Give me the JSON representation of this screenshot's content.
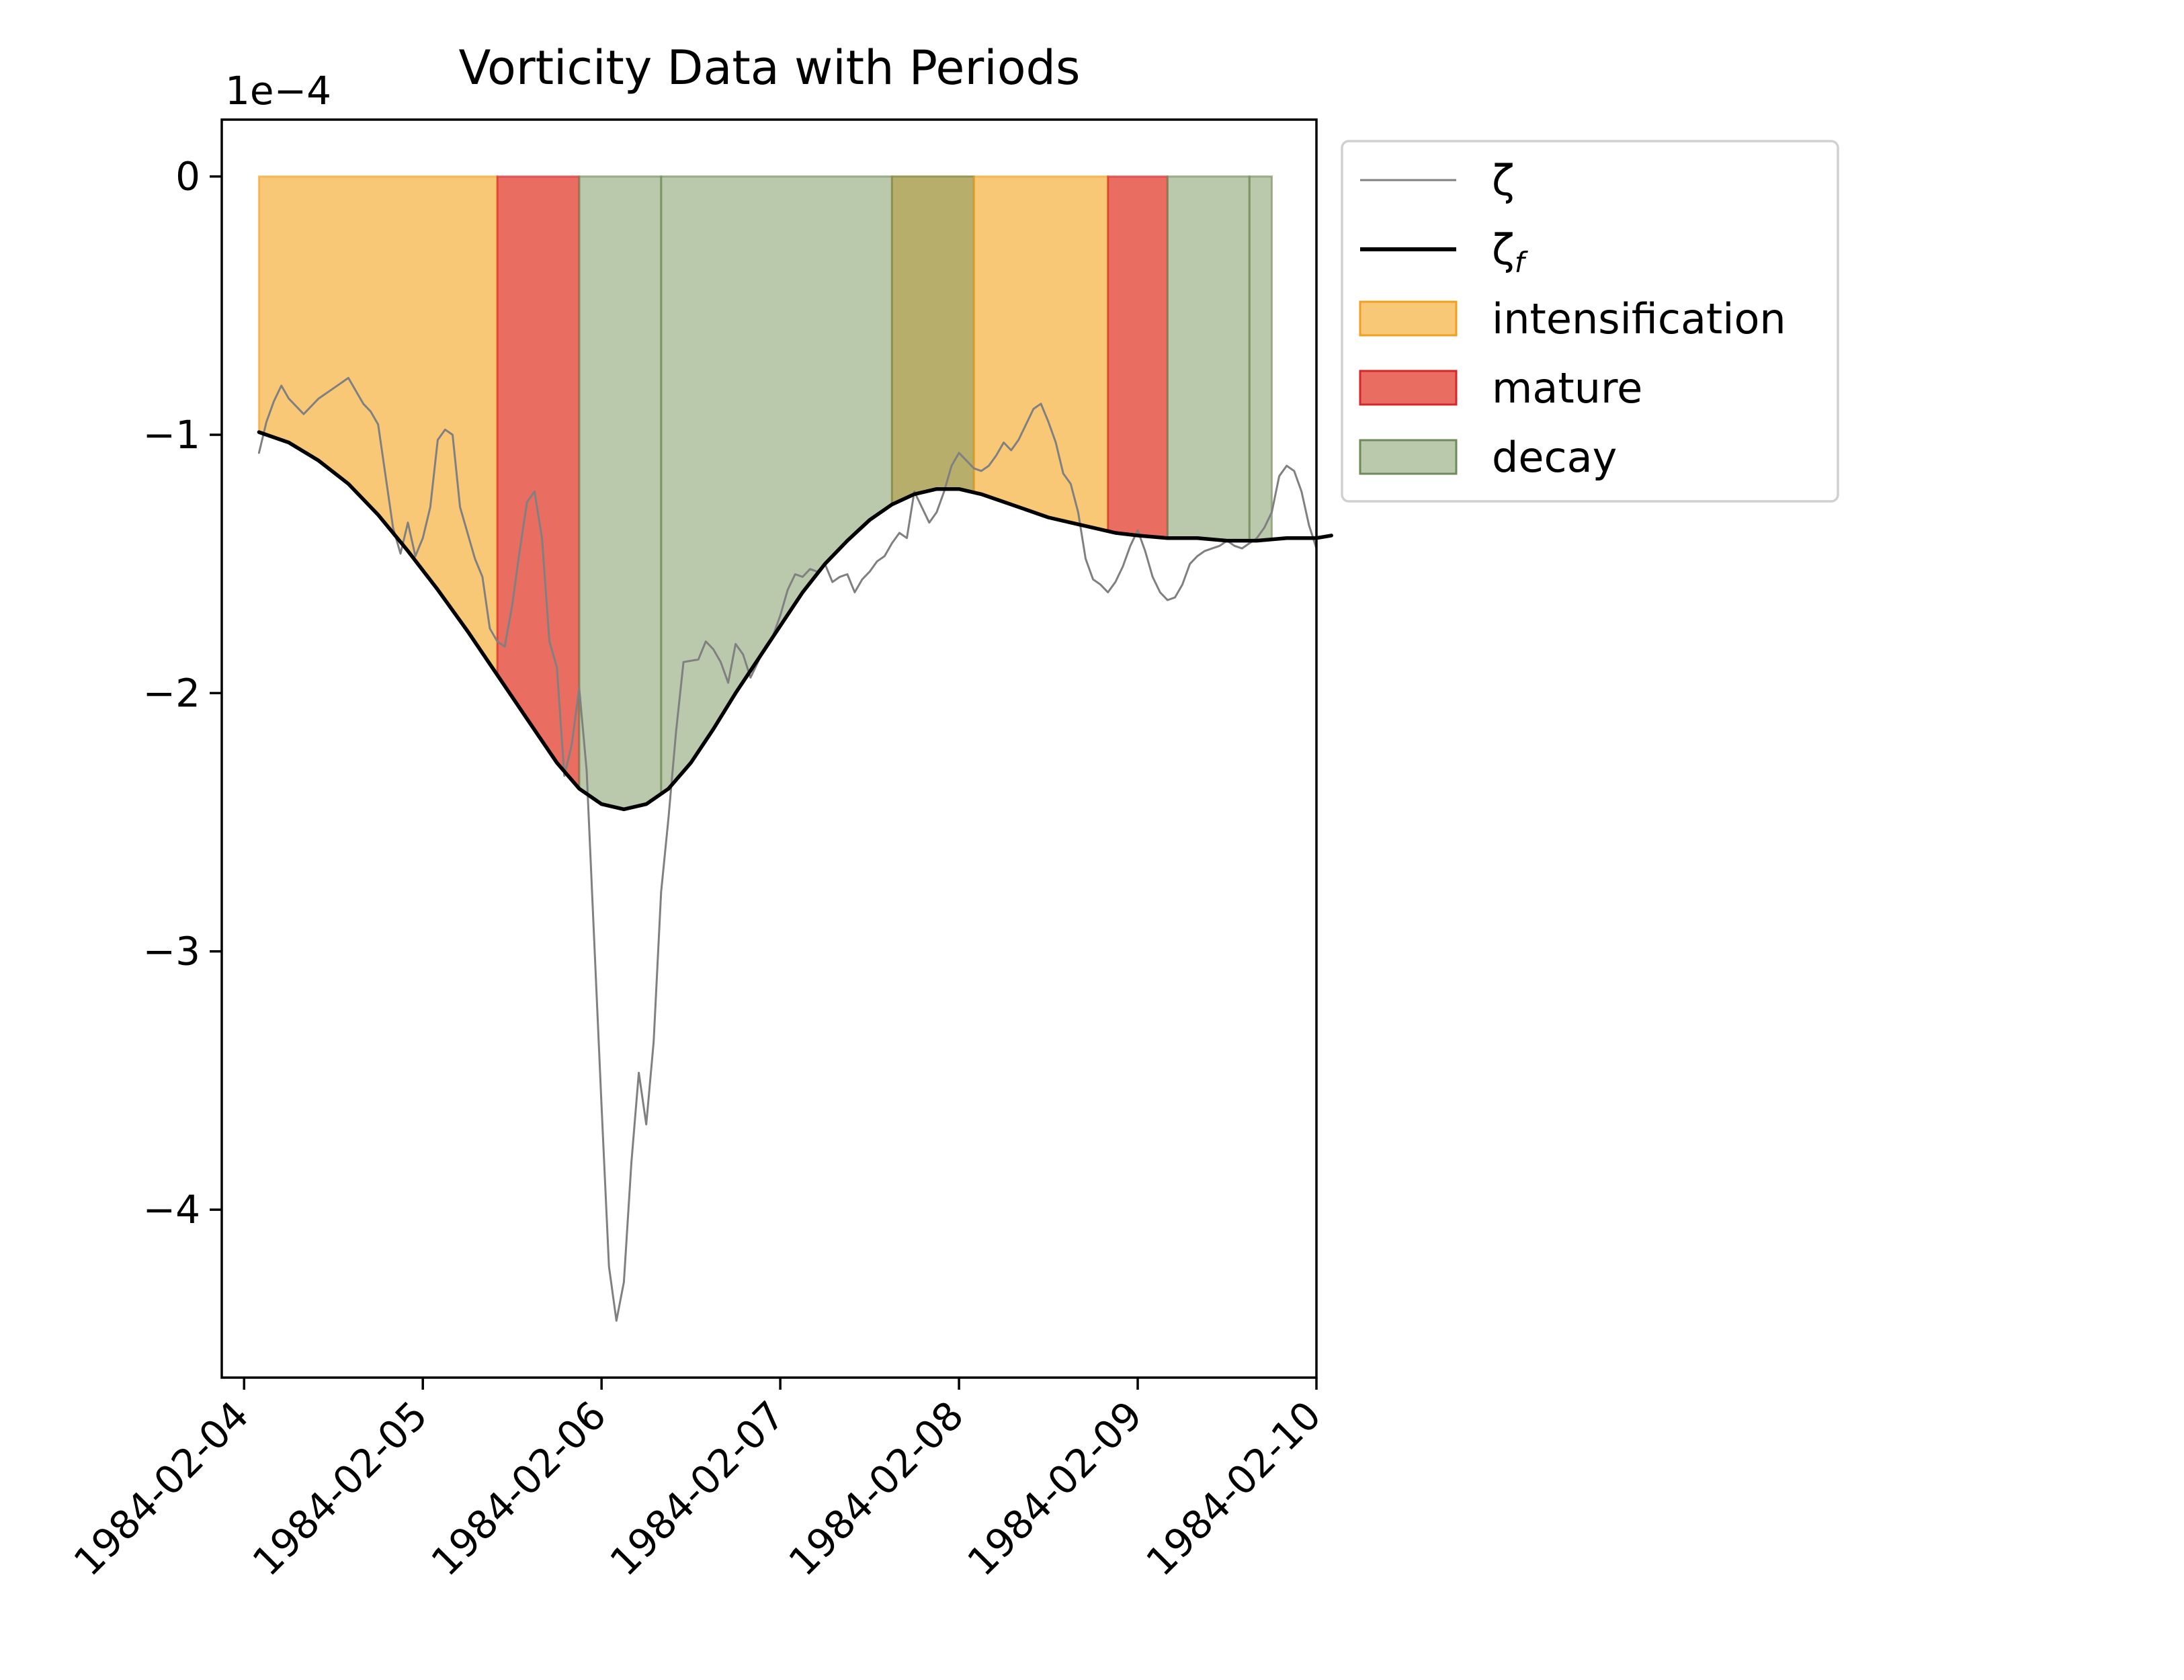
{
  "chart_data": {
    "type": "line",
    "title": "Vorticity Data with Periods",
    "offset_label": "1e−4",
    "xlabel": "",
    "ylabel": "",
    "xlim": [
      "1984-02-03T21:00",
      "1984-02-10T00:00"
    ],
    "ylim": [
      -4.65,
      0.22
    ],
    "x_ticks": [
      "1984-02-04",
      "1984-02-05",
      "1984-02-06",
      "1984-02-07",
      "1984-02-08",
      "1984-02-09",
      "1984-02-10"
    ],
    "y_ticks": [
      0,
      -1,
      -2,
      -3,
      -4
    ],
    "y_tick_labels": [
      "0",
      "−1",
      "−2",
      "−3",
      "−4"
    ],
    "legend_position": "outside-upper-right",
    "grid": false,
    "periods": [
      {
        "type": "intensification",
        "start": "1984-02-04T02:00",
        "end": "1984-02-05T10:00"
      },
      {
        "type": "mature",
        "start": "1984-02-05T10:00",
        "end": "1984-02-05T21:00"
      },
      {
        "type": "decay",
        "start": "1984-02-05T21:00",
        "end": "1984-02-06T08:00"
      },
      {
        "type": "decay",
        "start": "1984-02-06T08:00",
        "end": "1984-02-07T15:00"
      },
      {
        "type": "intensification",
        "start": "1984-02-07T15:00",
        "end": "1984-02-08T02:00"
      },
      {
        "type": "decay",
        "start": "1984-02-07T15:00",
        "end": "1984-02-08T02:00"
      },
      {
        "type": "intensification",
        "start": "1984-02-08T02:00",
        "end": "1984-02-08T20:00"
      },
      {
        "type": "mature",
        "start": "1984-02-08T20:00",
        "end": "1984-02-09T04:00"
      },
      {
        "type": "decay",
        "start": "1984-02-09T04:00",
        "end": "1984-02-09T15:00"
      },
      {
        "type": "decay",
        "start": "1984-02-09T15:00",
        "end": "1984-02-09T18:00"
      }
    ],
    "series": [
      {
        "name": "ζ",
        "color": "#808080",
        "points": [
          [
            "1984-02-04T02:00",
            -1.07
          ],
          [
            "1984-02-04T03:00",
            -0.95
          ],
          [
            "1984-02-04T04:00",
            -0.87
          ],
          [
            "1984-02-04T05:00",
            -0.81
          ],
          [
            "1984-02-04T06:00",
            -0.86
          ],
          [
            "1984-02-04T08:00",
            -0.92
          ],
          [
            "1984-02-04T10:00",
            -0.86
          ],
          [
            "1984-02-04T12:00",
            -0.82
          ],
          [
            "1984-02-04T14:00",
            -0.78
          ],
          [
            "1984-02-04T16:00",
            -0.88
          ],
          [
            "1984-02-04T17:00",
            -0.91
          ],
          [
            "1984-02-04T18:00",
            -0.96
          ],
          [
            "1984-02-04T20:00",
            -1.36
          ],
          [
            "1984-02-04T21:00",
            -1.46
          ],
          [
            "1984-02-04T22:00",
            -1.34
          ],
          [
            "1984-02-04T23:00",
            -1.47
          ],
          [
            "1984-02-05T00:00",
            -1.4
          ],
          [
            "1984-02-05T01:00",
            -1.28
          ],
          [
            "1984-02-05T02:00",
            -1.02
          ],
          [
            "1984-02-05T03:00",
            -0.98
          ],
          [
            "1984-02-05T04:00",
            -1.0
          ],
          [
            "1984-02-05T05:00",
            -1.28
          ],
          [
            "1984-02-05T07:00",
            -1.48
          ],
          [
            "1984-02-05T08:00",
            -1.55
          ],
          [
            "1984-02-05T09:00",
            -1.75
          ],
          [
            "1984-02-05T10:00",
            -1.8
          ],
          [
            "1984-02-05T11:00",
            -1.82
          ],
          [
            "1984-02-05T12:00",
            -1.66
          ],
          [
            "1984-02-05T13:00",
            -1.45
          ],
          [
            "1984-02-05T14:00",
            -1.26
          ],
          [
            "1984-02-05T15:00",
            -1.22
          ],
          [
            "1984-02-05T16:00",
            -1.4
          ],
          [
            "1984-02-05T17:00",
            -1.8
          ],
          [
            "1984-02-05T18:00",
            -1.9
          ],
          [
            "1984-02-05T19:00",
            -2.32
          ],
          [
            "1984-02-05T20:00",
            -2.2
          ],
          [
            "1984-02-05T21:00",
            -1.98
          ],
          [
            "1984-02-05T22:00",
            -2.3
          ],
          [
            "1984-02-05T23:00",
            -2.95
          ],
          [
            "1984-02-06T00:00",
            -3.6
          ],
          [
            "1984-02-06T01:00",
            -4.22
          ],
          [
            "1984-02-06T02:00",
            -4.43
          ],
          [
            "1984-02-06T03:00",
            -4.28
          ],
          [
            "1984-02-06T04:00",
            -3.82
          ],
          [
            "1984-02-06T05:00",
            -3.47
          ],
          [
            "1984-02-06T06:00",
            -3.67
          ],
          [
            "1984-02-06T07:00",
            -3.35
          ],
          [
            "1984-02-06T08:00",
            -2.77
          ],
          [
            "1984-02-06T09:00",
            -2.48
          ],
          [
            "1984-02-06T10:00",
            -2.15
          ],
          [
            "1984-02-06T11:00",
            -1.88
          ],
          [
            "1984-02-06T13:00",
            -1.87
          ],
          [
            "1984-02-06T14:00",
            -1.8
          ],
          [
            "1984-02-06T15:00",
            -1.83
          ],
          [
            "1984-02-06T16:00",
            -1.88
          ],
          [
            "1984-02-06T17:00",
            -1.96
          ],
          [
            "1984-02-06T18:00",
            -1.81
          ],
          [
            "1984-02-06T19:00",
            -1.85
          ],
          [
            "1984-02-06T20:00",
            -1.94
          ],
          [
            "1984-02-06T21:00",
            -1.88
          ],
          [
            "1984-02-06T22:00",
            -1.82
          ],
          [
            "1984-02-06T23:00",
            -1.78
          ],
          [
            "1984-02-07T00:00",
            -1.7
          ],
          [
            "1984-02-07T01:00",
            -1.6
          ],
          [
            "1984-02-07T02:00",
            -1.54
          ],
          [
            "1984-02-07T03:00",
            -1.55
          ],
          [
            "1984-02-07T04:00",
            -1.52
          ],
          [
            "1984-02-07T05:00",
            -1.53
          ],
          [
            "1984-02-07T06:00",
            -1.5
          ],
          [
            "1984-02-07T07:00",
            -1.57
          ],
          [
            "1984-02-07T08:00",
            -1.55
          ],
          [
            "1984-02-07T09:00",
            -1.54
          ],
          [
            "1984-02-07T10:00",
            -1.61
          ],
          [
            "1984-02-07T11:00",
            -1.56
          ],
          [
            "1984-02-07T12:00",
            -1.53
          ],
          [
            "1984-02-07T13:00",
            -1.49
          ],
          [
            "1984-02-07T14:00",
            -1.47
          ],
          [
            "1984-02-07T15:00",
            -1.42
          ],
          [
            "1984-02-07T16:00",
            -1.38
          ],
          [
            "1984-02-07T17:00",
            -1.4
          ],
          [
            "1984-02-07T18:00",
            -1.22
          ],
          [
            "1984-02-07T19:00",
            -1.28
          ],
          [
            "1984-02-07T20:00",
            -1.34
          ],
          [
            "1984-02-07T21:00",
            -1.3
          ],
          [
            "1984-02-07T22:00",
            -1.22
          ],
          [
            "1984-02-07T23:00",
            -1.12
          ],
          [
            "1984-02-08T00:00",
            -1.07
          ],
          [
            "1984-02-08T01:00",
            -1.1
          ],
          [
            "1984-02-08T02:00",
            -1.13
          ],
          [
            "1984-02-08T03:00",
            -1.14
          ],
          [
            "1984-02-08T04:00",
            -1.12
          ],
          [
            "1984-02-08T05:00",
            -1.08
          ],
          [
            "1984-02-08T06:00",
            -1.03
          ],
          [
            "1984-02-08T07:00",
            -1.06
          ],
          [
            "1984-02-08T08:00",
            -1.02
          ],
          [
            "1984-02-08T09:00",
            -0.96
          ],
          [
            "1984-02-08T10:00",
            -0.9
          ],
          [
            "1984-02-08T11:00",
            -0.88
          ],
          [
            "1984-02-08T12:00",
            -0.95
          ],
          [
            "1984-02-08T13:00",
            -1.03
          ],
          [
            "1984-02-08T14:00",
            -1.15
          ],
          [
            "1984-02-08T15:00",
            -1.19
          ],
          [
            "1984-02-08T16:00",
            -1.3
          ],
          [
            "1984-02-08T17:00",
            -1.48
          ],
          [
            "1984-02-08T18:00",
            -1.56
          ],
          [
            "1984-02-08T19:00",
            -1.58
          ],
          [
            "1984-02-08T20:00",
            -1.61
          ],
          [
            "1984-02-08T21:00",
            -1.57
          ],
          [
            "1984-02-08T22:00",
            -1.51
          ],
          [
            "1984-02-08T23:00",
            -1.43
          ],
          [
            "1984-02-09T00:00",
            -1.37
          ],
          [
            "1984-02-09T01:00",
            -1.45
          ],
          [
            "1984-02-09T02:00",
            -1.55
          ],
          [
            "1984-02-09T03:00",
            -1.61
          ],
          [
            "1984-02-09T04:00",
            -1.64
          ],
          [
            "1984-02-09T05:00",
            -1.63
          ],
          [
            "1984-02-09T06:00",
            -1.58
          ],
          [
            "1984-02-09T07:00",
            -1.5
          ],
          [
            "1984-02-09T08:00",
            -1.47
          ],
          [
            "1984-02-09T09:00",
            -1.45
          ],
          [
            "1984-02-09T10:00",
            -1.44
          ],
          [
            "1984-02-09T11:00",
            -1.43
          ],
          [
            "1984-02-09T12:00",
            -1.41
          ],
          [
            "1984-02-09T13:00",
            -1.43
          ],
          [
            "1984-02-09T14:00",
            -1.44
          ],
          [
            "1984-02-09T15:00",
            -1.42
          ],
          [
            "1984-02-09T16:00",
            -1.4
          ],
          [
            "1984-02-09T17:00",
            -1.36
          ],
          [
            "1984-02-09T18:00",
            -1.3
          ],
          [
            "1984-02-09T19:00",
            -1.16
          ],
          [
            "1984-02-09T20:00",
            -1.12
          ],
          [
            "1984-02-09T21:00",
            -1.14
          ],
          [
            "1984-02-09T22:00",
            -1.22
          ],
          [
            "1984-02-09T23:00",
            -1.35
          ],
          [
            "1984-02-10T00:00",
            -1.44
          ]
        ]
      },
      {
        "name": "ζf",
        "color": "#000000",
        "points": [
          [
            "1984-02-04T02:00",
            -0.99
          ],
          [
            "1984-02-04T06:00",
            -1.03
          ],
          [
            "1984-02-04T10:00",
            -1.1
          ],
          [
            "1984-02-04T14:00",
            -1.19
          ],
          [
            "1984-02-04T18:00",
            -1.31
          ],
          [
            "1984-02-04T22:00",
            -1.45
          ],
          [
            "1984-02-05T02:00",
            -1.6
          ],
          [
            "1984-02-05T06:00",
            -1.76
          ],
          [
            "1984-02-05T10:00",
            -1.93
          ],
          [
            "1984-02-05T14:00",
            -2.1
          ],
          [
            "1984-02-05T18:00",
            -2.27
          ],
          [
            "1984-02-05T21:00",
            -2.37
          ],
          [
            "1984-02-06T00:00",
            -2.43
          ],
          [
            "1984-02-06T03:00",
            -2.45
          ],
          [
            "1984-02-06T06:00",
            -2.43
          ],
          [
            "1984-02-06T09:00",
            -2.37
          ],
          [
            "1984-02-06T12:00",
            -2.27
          ],
          [
            "1984-02-06T15:00",
            -2.14
          ],
          [
            "1984-02-06T18:00",
            -2.0
          ],
          [
            "1984-02-06T21:00",
            -1.87
          ],
          [
            "1984-02-07T00:00",
            -1.74
          ],
          [
            "1984-02-07T03:00",
            -1.61
          ],
          [
            "1984-02-07T06:00",
            -1.5
          ],
          [
            "1984-02-07T09:00",
            -1.41
          ],
          [
            "1984-02-07T12:00",
            -1.33
          ],
          [
            "1984-02-07T15:00",
            -1.27
          ],
          [
            "1984-02-07T18:00",
            -1.23
          ],
          [
            "1984-02-07T21:00",
            -1.21
          ],
          [
            "1984-02-08T00:00",
            -1.21
          ],
          [
            "1984-02-08T03:00",
            -1.23
          ],
          [
            "1984-02-08T06:00",
            -1.26
          ],
          [
            "1984-02-08T09:00",
            -1.29
          ],
          [
            "1984-02-08T12:00",
            -1.32
          ],
          [
            "1984-02-08T15:00",
            -1.34
          ],
          [
            "1984-02-08T18:00",
            -1.36
          ],
          [
            "1984-02-08T21:00",
            -1.38
          ],
          [
            "1984-02-09T00:00",
            -1.39
          ],
          [
            "1984-02-09T04:00",
            -1.4
          ],
          [
            "1984-02-09T08:00",
            -1.4
          ],
          [
            "1984-02-09T12:00",
            -1.41
          ],
          [
            "1984-02-09T16:00",
            -1.41
          ],
          [
            "1984-02-09T20:00",
            -1.4
          ],
          [
            "1984-02-10T00:00",
            -1.4
          ],
          [
            "1984-02-10T02:00",
            -1.39
          ]
        ]
      }
    ],
    "legend": [
      {
        "key": "zeta",
        "label": "ζ",
        "kind": "line",
        "color": "#808080"
      },
      {
        "key": "zeta_f",
        "label": "ζ",
        "subscript": "f",
        "kind": "line",
        "color": "#000000"
      },
      {
        "key": "intensification",
        "label": "intensification",
        "kind": "patch",
        "fill": "#f5a623",
        "edge": "#f0a020"
      },
      {
        "key": "mature",
        "label": "mature",
        "kind": "patch",
        "fill": "#d62728",
        "edge": "#d62728"
      },
      {
        "key": "decay",
        "label": "decay",
        "kind": "patch",
        "fill": "#7a9660",
        "edge": "#6e8a58"
      }
    ],
    "period_styles": {
      "intensification": {
        "fill": "#f5a623",
        "opacity": 0.62,
        "edge": "#f0a020"
      },
      "mature": {
        "fill": "#e23524",
        "opacity": 0.72,
        "edge": "#d62728"
      },
      "decay": {
        "fill": "#7a9660",
        "opacity": 0.52,
        "edge": "#6e8a58"
      }
    }
  }
}
